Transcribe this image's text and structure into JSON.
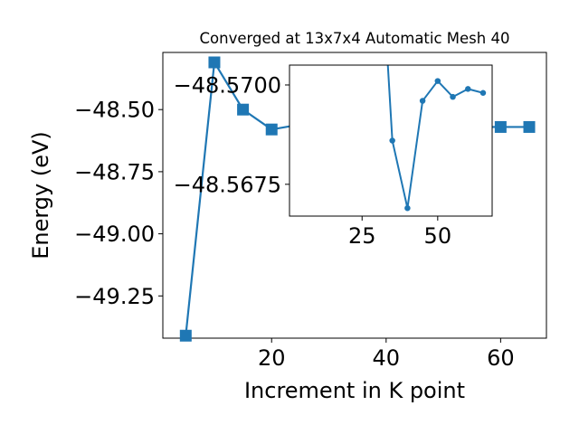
{
  "chart_data": [
    {
      "type": "line",
      "title": "Converged at 13x7x4 Automatic Mesh 40",
      "xlabel": "Increment in K point",
      "ylabel": "Energy (eV)",
      "xlim": [
        1,
        68
      ],
      "ylim": [
        -49.42,
        -48.27
      ],
      "xticks": [
        20,
        40,
        60
      ],
      "yticks": [
        -49.25,
        -49.0,
        -48.75,
        -48.5
      ],
      "ytick_labels": [
        "−49.25",
        "−49.00",
        "−48.75",
        "−48.50"
      ],
      "grid": false,
      "series": [
        {
          "color": "#1f77b4",
          "marker": "square",
          "x": [
            5,
            10,
            15,
            20,
            25,
            30,
            35,
            40,
            45,
            50,
            55,
            60,
            65
          ],
          "y": [
            -49.41,
            -48.31,
            -48.5,
            -48.58,
            -48.56,
            -48.57,
            -48.57,
            -48.57,
            -48.57,
            -48.57,
            -48.57,
            -48.57,
            -48.57
          ]
        }
      ]
    },
    {
      "type": "line",
      "title": "",
      "xlabel": "",
      "ylabel": "",
      "xlim": [
        1,
        68
      ],
      "ylim": [
        -48.5667,
        -48.5705
      ],
      "xticks": [
        25,
        50
      ],
      "yticks": [
        -48.57,
        -48.5675
      ],
      "ytick_labels": [
        "−48.5700",
        "−48.5675"
      ],
      "grid": false,
      "series": [
        {
          "color": "#1f77b4",
          "marker": "circle",
          "x": [
            35,
            40,
            45,
            50,
            55,
            60,
            65
          ],
          "y": [
            -48.5686,
            -48.5669,
            -48.5696,
            -48.5701,
            -48.5697,
            -48.5699,
            -48.5698
          ],
          "lead_in": {
            "x": 30,
            "y": -48.575
          }
        }
      ]
    }
  ]
}
